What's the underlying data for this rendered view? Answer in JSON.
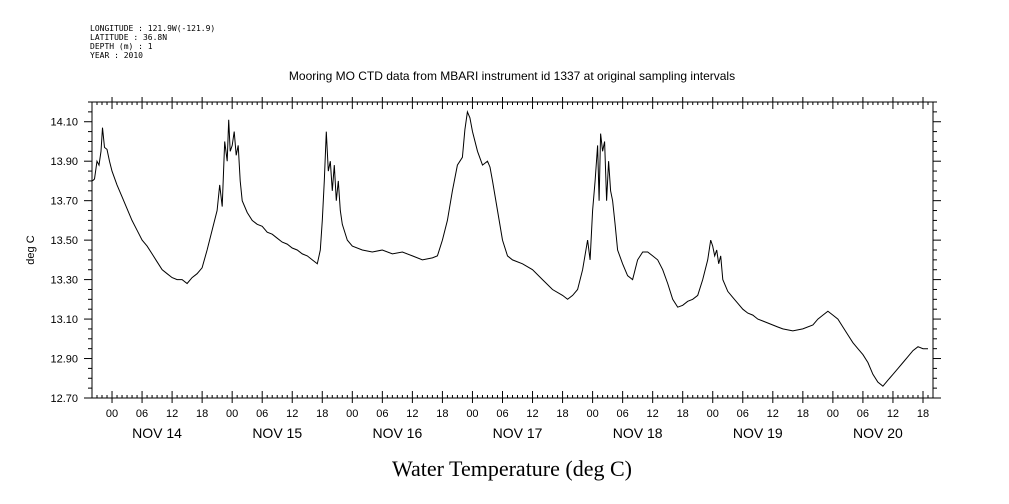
{
  "meta": [
    "LONGITUDE : 121.9W(-121.9)",
    "LATITUDE : 36.8N",
    "DEPTH (m) : 1",
    "YEAR : 2010"
  ],
  "chart_data": {
    "type": "line",
    "title": "Mooring MO CTD data from MBARI instrument id 1337 at original sampling intervals",
    "xlabel": "Water Temperature (deg C)",
    "ylabel": "deg C",
    "ylim": [
      12.7,
      14.2
    ],
    "yticks": [
      "14.10",
      "13.90",
      "13.70",
      "13.50",
      "13.30",
      "13.10",
      "12.90",
      "12.70"
    ],
    "xlim": [
      -4,
      164
    ],
    "hour_tick_labels": [
      "00",
      "06",
      "12",
      "18"
    ],
    "day_labels": [
      "NOV 14",
      "NOV 15",
      "NOV 16",
      "NOV 17",
      "NOV 18",
      "NOV 19",
      "NOV 20"
    ],
    "x_units": "hours since 2010-11-14 00:00",
    "series": [
      {
        "values": [
          [
            -3.9,
            13.8
          ],
          [
            -3.5,
            13.81
          ],
          [
            -3.0,
            13.9
          ],
          [
            -2.6,
            13.88
          ],
          [
            -2.2,
            13.95
          ],
          [
            -1.9,
            14.07
          ],
          [
            -1.5,
            13.97
          ],
          [
            -1.0,
            13.96
          ],
          [
            -0.5,
            13.9
          ],
          [
            0.0,
            13.85
          ],
          [
            1.0,
            13.78
          ],
          [
            2.0,
            13.72
          ],
          [
            3.0,
            13.66
          ],
          [
            4.0,
            13.6
          ],
          [
            5.0,
            13.55
          ],
          [
            6.0,
            13.5
          ],
          [
            7.0,
            13.47
          ],
          [
            8.0,
            13.43
          ],
          [
            9.0,
            13.39
          ],
          [
            10.0,
            13.35
          ],
          [
            11.0,
            13.33
          ],
          [
            12.0,
            13.31
          ],
          [
            13.0,
            13.3
          ],
          [
            14.0,
            13.3
          ],
          [
            15.0,
            13.28
          ],
          [
            16.0,
            13.31
          ],
          [
            17.0,
            13.33
          ],
          [
            18.0,
            13.36
          ],
          [
            19.0,
            13.45
          ],
          [
            20.0,
            13.55
          ],
          [
            21.0,
            13.65
          ],
          [
            21.5,
            13.78
          ],
          [
            22.0,
            13.67
          ],
          [
            22.5,
            14.0
          ],
          [
            23.0,
            13.9
          ],
          [
            23.3,
            14.11
          ],
          [
            23.6,
            13.95
          ],
          [
            24.0,
            13.98
          ],
          [
            24.4,
            14.05
          ],
          [
            24.8,
            13.93
          ],
          [
            25.2,
            13.98
          ],
          [
            25.6,
            13.8
          ],
          [
            26.0,
            13.7
          ],
          [
            27.0,
            13.64
          ],
          [
            28.0,
            13.6
          ],
          [
            29.0,
            13.58
          ],
          [
            30.0,
            13.57
          ],
          [
            31.0,
            13.54
          ],
          [
            32.0,
            13.53
          ],
          [
            33.0,
            13.51
          ],
          [
            34.0,
            13.49
          ],
          [
            35.0,
            13.48
          ],
          [
            36.0,
            13.46
          ],
          [
            37.0,
            13.45
          ],
          [
            38.0,
            13.43
          ],
          [
            39.0,
            13.42
          ],
          [
            40.0,
            13.4
          ],
          [
            41.0,
            13.38
          ],
          [
            41.6,
            13.45
          ],
          [
            42.0,
            13.6
          ],
          [
            42.4,
            13.8
          ],
          [
            42.8,
            14.05
          ],
          [
            43.2,
            13.85
          ],
          [
            43.6,
            13.9
          ],
          [
            44.0,
            13.75
          ],
          [
            44.4,
            13.88
          ],
          [
            44.8,
            13.7
          ],
          [
            45.2,
            13.8
          ],
          [
            45.6,
            13.65
          ],
          [
            46.0,
            13.58
          ],
          [
            47.0,
            13.5
          ],
          [
            48.0,
            13.47
          ],
          [
            50.0,
            13.45
          ],
          [
            52.0,
            13.44
          ],
          [
            54.0,
            13.45
          ],
          [
            56.0,
            13.43
          ],
          [
            58.0,
            13.44
          ],
          [
            60.0,
            13.42
          ],
          [
            62.0,
            13.4
          ],
          [
            64.0,
            13.41
          ],
          [
            65.0,
            13.42
          ],
          [
            66.0,
            13.5
          ],
          [
            67.0,
            13.6
          ],
          [
            68.0,
            13.75
          ],
          [
            69.0,
            13.88
          ],
          [
            70.0,
            13.92
          ],
          [
            70.5,
            14.06
          ],
          [
            71.0,
            14.15
          ],
          [
            71.5,
            14.12
          ],
          [
            72.0,
            14.05
          ],
          [
            73.0,
            13.95
          ],
          [
            74.0,
            13.88
          ],
          [
            75.0,
            13.9
          ],
          [
            75.5,
            13.87
          ],
          [
            76.0,
            13.8
          ],
          [
            77.0,
            13.65
          ],
          [
            78.0,
            13.5
          ],
          [
            79.0,
            13.42
          ],
          [
            80.0,
            13.4
          ],
          [
            82.0,
            13.38
          ],
          [
            84.0,
            13.35
          ],
          [
            86.0,
            13.3
          ],
          [
            88.0,
            13.25
          ],
          [
            90.0,
            13.22
          ],
          [
            91.0,
            13.2
          ],
          [
            92.0,
            13.22
          ],
          [
            93.0,
            13.25
          ],
          [
            94.0,
            13.35
          ],
          [
            95.0,
            13.5
          ],
          [
            95.5,
            13.4
          ],
          [
            96.0,
            13.65
          ],
          [
            96.5,
            13.8
          ],
          [
            97.0,
            13.98
          ],
          [
            97.3,
            13.7
          ],
          [
            97.6,
            14.04
          ],
          [
            98.0,
            13.95
          ],
          [
            98.4,
            14.0
          ],
          [
            98.8,
            13.7
          ],
          [
            99.2,
            13.9
          ],
          [
            99.6,
            13.75
          ],
          [
            100.0,
            13.7
          ],
          [
            100.5,
            13.58
          ],
          [
            101.0,
            13.45
          ],
          [
            102.0,
            13.38
          ],
          [
            103.0,
            13.32
          ],
          [
            104.0,
            13.3
          ],
          [
            105.0,
            13.4
          ],
          [
            106.0,
            13.44
          ],
          [
            107.0,
            13.44
          ],
          [
            108.0,
            13.42
          ],
          [
            109.0,
            13.4
          ],
          [
            110.0,
            13.35
          ],
          [
            111.0,
            13.28
          ],
          [
            112.0,
            13.2
          ],
          [
            113.0,
            13.16
          ],
          [
            114.0,
            13.17
          ],
          [
            115.0,
            13.19
          ],
          [
            116.0,
            13.2
          ],
          [
            117.0,
            13.22
          ],
          [
            118.0,
            13.3
          ],
          [
            119.0,
            13.4
          ],
          [
            119.6,
            13.5
          ],
          [
            120.0,
            13.47
          ],
          [
            120.4,
            13.42
          ],
          [
            120.8,
            13.45
          ],
          [
            121.2,
            13.38
          ],
          [
            121.6,
            13.42
          ],
          [
            122.0,
            13.3
          ],
          [
            123.0,
            13.24
          ],
          [
            124.0,
            13.21
          ],
          [
            125.0,
            13.18
          ],
          [
            126.0,
            13.15
          ],
          [
            127.0,
            13.13
          ],
          [
            128.0,
            13.12
          ],
          [
            129.0,
            13.1
          ],
          [
            130.0,
            13.09
          ],
          [
            131.0,
            13.08
          ],
          [
            132.0,
            13.07
          ],
          [
            133.0,
            13.06
          ],
          [
            134.0,
            13.05
          ],
          [
            136.0,
            13.04
          ],
          [
            138.0,
            13.05
          ],
          [
            140.0,
            13.07
          ],
          [
            141.0,
            13.1
          ],
          [
            142.0,
            13.12
          ],
          [
            143.0,
            13.14
          ],
          [
            144.0,
            13.12
          ],
          [
            145.0,
            13.1
          ],
          [
            146.0,
            13.06
          ],
          [
            147.0,
            13.02
          ],
          [
            148.0,
            12.98
          ],
          [
            149.0,
            12.95
          ],
          [
            150.0,
            12.92
          ],
          [
            151.0,
            12.88
          ],
          [
            152.0,
            12.82
          ],
          [
            153.0,
            12.78
          ],
          [
            154.0,
            12.76
          ],
          [
            155.0,
            12.79
          ],
          [
            156.0,
            12.82
          ],
          [
            157.0,
            12.85
          ],
          [
            158.0,
            12.88
          ],
          [
            159.0,
            12.91
          ],
          [
            160.0,
            12.94
          ],
          [
            161.0,
            12.96
          ],
          [
            162.0,
            12.95
          ],
          [
            163.0,
            12.95
          ]
        ]
      }
    ]
  }
}
